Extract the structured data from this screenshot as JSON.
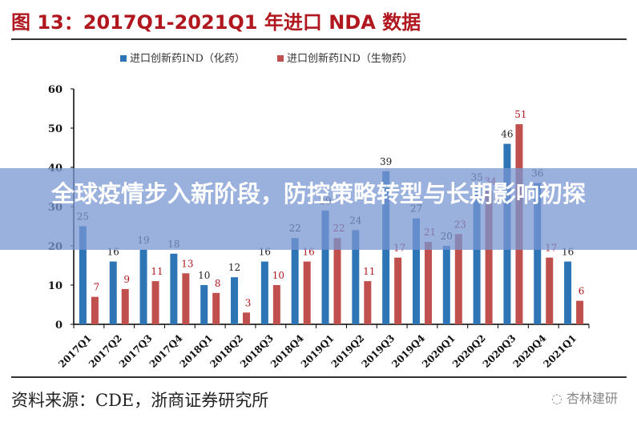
{
  "page_title": "图 13：2017Q1-2021Q1 年进口 NDA 数据",
  "source": "资料来源：CDE，浙商证券研究所",
  "watermark": "杏林建研",
  "banner": "全球疫情步入新阶段，防控策略转型与长期影响初探",
  "chart_data": {
    "type": "bar",
    "title": "图 13：2017Q1-2021Q1 年进口 NDA 数据",
    "xlabel": "",
    "ylabel": "",
    "ylim": [
      0,
      60
    ],
    "yticks": [
      0,
      10,
      20,
      30,
      40,
      50,
      60
    ],
    "legend_position": "top",
    "grid": false,
    "categories": [
      "2017Q1",
      "2017Q2",
      "2017Q3",
      "2017Q4",
      "2018Q1",
      "2018Q2",
      "2018Q3",
      "2018Q4",
      "2019Q1",
      "2019Q2",
      "2019Q3",
      "2019Q4",
      "2020Q1",
      "2020Q2",
      "2020Q3",
      "2020Q4",
      "2021Q1"
    ],
    "series": [
      {
        "name": "进口创新药IND（化药）",
        "color": "#2e75b6",
        "label_color": "#222222",
        "values": [
          25,
          16,
          19,
          18,
          10,
          12,
          16,
          22,
          29,
          24,
          39,
          27,
          20,
          35,
          46,
          36,
          16
        ]
      },
      {
        "name": "进口创新药IND（生物药）",
        "color": "#c0504d",
        "label_color": "#b0171f",
        "values": [
          7,
          9,
          11,
          13,
          8,
          3,
          10,
          16,
          22,
          11,
          17,
          21,
          23,
          34,
          51,
          17,
          6
        ]
      }
    ]
  }
}
